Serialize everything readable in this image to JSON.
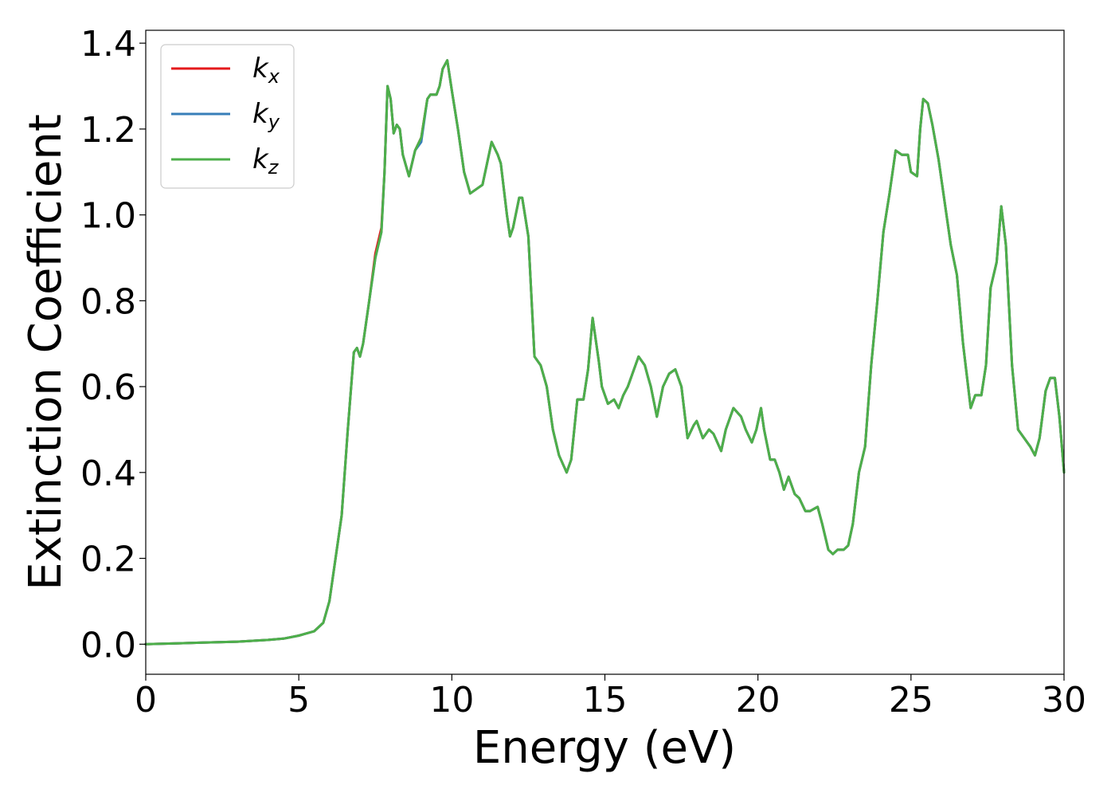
{
  "chart_data": {
    "type": "line",
    "xlabel": "Energy (eV)",
    "ylabel": "Extinction Coefficient",
    "xlim": [
      0,
      30
    ],
    "ylim": [
      -0.07,
      1.43
    ],
    "xticks": [
      0,
      5,
      10,
      15,
      20,
      25,
      30
    ],
    "xtick_labels": [
      "0",
      "5",
      "10",
      "15",
      "20",
      "25",
      "30"
    ],
    "yticks": [
      0.0,
      0.2,
      0.4,
      0.6,
      0.8,
      1.0,
      1.2,
      1.4
    ],
    "ytick_labels": [
      "0.0",
      "0.2",
      "0.4",
      "0.6",
      "0.8",
      "1.0",
      "1.2",
      "1.4"
    ],
    "grid": false,
    "legend_position": "top-left",
    "colors": {
      "kx": "#e41a1c",
      "ky": "#377eb8",
      "kz": "#4daf4a"
    },
    "x": [
      0,
      1,
      2,
      3,
      4,
      4.5,
      5,
      5.5,
      5.8,
      6.0,
      6.2,
      6.4,
      6.6,
      6.8,
      6.9,
      7.0,
      7.1,
      7.3,
      7.5,
      7.7,
      7.8,
      7.9,
      8.0,
      8.1,
      8.2,
      8.3,
      8.4,
      8.6,
      8.8,
      9.0,
      9.2,
      9.3,
      9.5,
      9.6,
      9.7,
      9.85,
      10.0,
      10.2,
      10.4,
      10.6,
      10.8,
      11.0,
      11.3,
      11.5,
      11.6,
      11.8,
      11.9,
      12.0,
      12.2,
      12.3,
      12.5,
      12.7,
      12.9,
      13.1,
      13.3,
      13.5,
      13.75,
      13.9,
      14.1,
      14.3,
      14.45,
      14.6,
      14.8,
      14.9,
      15.1,
      15.3,
      15.45,
      15.6,
      15.75,
      15.9,
      16.1,
      16.3,
      16.5,
      16.7,
      16.9,
      17.1,
      17.3,
      17.5,
      17.7,
      17.9,
      18.0,
      18.2,
      18.4,
      18.55,
      18.8,
      18.95,
      19.2,
      19.45,
      19.6,
      19.8,
      19.95,
      20.1,
      20.2,
      20.4,
      20.55,
      20.7,
      20.85,
      21.0,
      21.2,
      21.35,
      21.55,
      21.7,
      21.95,
      22.1,
      22.3,
      22.45,
      22.6,
      22.8,
      22.95,
      23.1,
      23.3,
      23.5,
      23.7,
      23.9,
      24.1,
      24.3,
      24.5,
      24.7,
      24.9,
      25.0,
      25.2,
      25.3,
      25.4,
      25.55,
      25.7,
      25.9,
      26.1,
      26.3,
      26.5,
      26.7,
      26.95,
      27.1,
      27.3,
      27.45,
      27.6,
      27.8,
      27.95,
      28.1,
      28.3,
      28.5,
      28.7,
      28.9,
      29.05,
      29.2,
      29.4,
      29.55,
      29.7,
      29.85,
      30.0
    ],
    "series": [
      {
        "name": "kx",
        "values": [
          0.0,
          0.002,
          0.004,
          0.006,
          0.01,
          0.013,
          0.02,
          0.03,
          0.05,
          0.1,
          0.2,
          0.3,
          0.5,
          0.68,
          0.69,
          0.67,
          0.7,
          0.8,
          0.91,
          0.97,
          1.1,
          1.3,
          1.27,
          1.19,
          1.21,
          1.2,
          1.14,
          1.09,
          1.15,
          1.18,
          1.27,
          1.28,
          1.28,
          1.3,
          1.34,
          1.36,
          1.29,
          1.2,
          1.1,
          1.05,
          1.06,
          1.07,
          1.17,
          1.14,
          1.12,
          1.0,
          0.95,
          0.97,
          1.04,
          1.04,
          0.95,
          0.67,
          0.65,
          0.6,
          0.5,
          0.44,
          0.4,
          0.43,
          0.57,
          0.57,
          0.64,
          0.76,
          0.66,
          0.6,
          0.56,
          0.57,
          0.55,
          0.58,
          0.6,
          0.63,
          0.67,
          0.65,
          0.6,
          0.53,
          0.6,
          0.63,
          0.64,
          0.6,
          0.48,
          0.51,
          0.52,
          0.48,
          0.5,
          0.49,
          0.45,
          0.5,
          0.55,
          0.53,
          0.5,
          0.47,
          0.5,
          0.55,
          0.5,
          0.43,
          0.43,
          0.4,
          0.36,
          0.39,
          0.35,
          0.34,
          0.31,
          0.31,
          0.32,
          0.28,
          0.22,
          0.21,
          0.22,
          0.22,
          0.23,
          0.28,
          0.4,
          0.46,
          0.65,
          0.8,
          0.96,
          1.05,
          1.15,
          1.14,
          1.14,
          1.1,
          1.09,
          1.2,
          1.27,
          1.26,
          1.21,
          1.13,
          1.03,
          0.93,
          0.86,
          0.7,
          0.55,
          0.58,
          0.58,
          0.65,
          0.83,
          0.89,
          1.02,
          0.93,
          0.65,
          0.5,
          0.48,
          0.46,
          0.44,
          0.48,
          0.59,
          0.62,
          0.62,
          0.53,
          0.4
        ]
      },
      {
        "name": "ky",
        "values": [
          0.0,
          0.002,
          0.004,
          0.006,
          0.01,
          0.013,
          0.02,
          0.03,
          0.05,
          0.1,
          0.2,
          0.3,
          0.5,
          0.68,
          0.69,
          0.67,
          0.7,
          0.8,
          0.9,
          0.96,
          1.1,
          1.3,
          1.27,
          1.19,
          1.21,
          1.2,
          1.14,
          1.09,
          1.15,
          1.17,
          1.27,
          1.28,
          1.28,
          1.3,
          1.34,
          1.36,
          1.29,
          1.2,
          1.1,
          1.05,
          1.06,
          1.07,
          1.17,
          1.14,
          1.12,
          1.0,
          0.95,
          0.97,
          1.04,
          1.04,
          0.95,
          0.67,
          0.65,
          0.6,
          0.5,
          0.44,
          0.4,
          0.43,
          0.57,
          0.57,
          0.64,
          0.76,
          0.66,
          0.6,
          0.56,
          0.57,
          0.55,
          0.58,
          0.6,
          0.63,
          0.67,
          0.65,
          0.6,
          0.53,
          0.6,
          0.63,
          0.64,
          0.6,
          0.48,
          0.51,
          0.52,
          0.48,
          0.5,
          0.49,
          0.45,
          0.5,
          0.55,
          0.53,
          0.5,
          0.47,
          0.5,
          0.55,
          0.5,
          0.43,
          0.43,
          0.4,
          0.36,
          0.39,
          0.35,
          0.34,
          0.31,
          0.31,
          0.32,
          0.28,
          0.22,
          0.21,
          0.22,
          0.22,
          0.23,
          0.28,
          0.4,
          0.46,
          0.65,
          0.8,
          0.96,
          1.05,
          1.15,
          1.14,
          1.14,
          1.1,
          1.09,
          1.2,
          1.27,
          1.26,
          1.21,
          1.13,
          1.03,
          0.93,
          0.86,
          0.7,
          0.55,
          0.58,
          0.58,
          0.65,
          0.83,
          0.89,
          1.02,
          0.93,
          0.65,
          0.5,
          0.48,
          0.46,
          0.44,
          0.48,
          0.59,
          0.62,
          0.62,
          0.53,
          0.4
        ]
      },
      {
        "name": "kz",
        "values": [
          0.0,
          0.002,
          0.004,
          0.006,
          0.01,
          0.013,
          0.02,
          0.03,
          0.05,
          0.1,
          0.2,
          0.3,
          0.5,
          0.68,
          0.69,
          0.67,
          0.7,
          0.8,
          0.9,
          0.96,
          1.1,
          1.3,
          1.27,
          1.19,
          1.21,
          1.2,
          1.14,
          1.09,
          1.15,
          1.18,
          1.27,
          1.28,
          1.28,
          1.3,
          1.34,
          1.36,
          1.29,
          1.2,
          1.1,
          1.05,
          1.06,
          1.07,
          1.17,
          1.14,
          1.12,
          1.0,
          0.95,
          0.97,
          1.04,
          1.04,
          0.95,
          0.67,
          0.65,
          0.6,
          0.5,
          0.44,
          0.4,
          0.43,
          0.57,
          0.57,
          0.64,
          0.76,
          0.66,
          0.6,
          0.56,
          0.57,
          0.55,
          0.58,
          0.6,
          0.63,
          0.67,
          0.65,
          0.6,
          0.53,
          0.6,
          0.63,
          0.64,
          0.6,
          0.48,
          0.51,
          0.52,
          0.48,
          0.5,
          0.49,
          0.45,
          0.5,
          0.55,
          0.53,
          0.5,
          0.47,
          0.5,
          0.55,
          0.5,
          0.43,
          0.43,
          0.4,
          0.36,
          0.39,
          0.35,
          0.34,
          0.31,
          0.31,
          0.32,
          0.28,
          0.22,
          0.21,
          0.22,
          0.22,
          0.23,
          0.28,
          0.4,
          0.46,
          0.65,
          0.8,
          0.96,
          1.05,
          1.15,
          1.14,
          1.14,
          1.1,
          1.09,
          1.2,
          1.27,
          1.26,
          1.21,
          1.13,
          1.03,
          0.93,
          0.86,
          0.7,
          0.55,
          0.58,
          0.58,
          0.65,
          0.83,
          0.89,
          1.02,
          0.93,
          0.65,
          0.5,
          0.48,
          0.46,
          0.44,
          0.48,
          0.59,
          0.62,
          0.62,
          0.53,
          0.4
        ]
      }
    ],
    "legend": [
      {
        "base": "k",
        "sub": "x",
        "series": "kx"
      },
      {
        "base": "k",
        "sub": "y",
        "series": "ky"
      },
      {
        "base": "k",
        "sub": "z",
        "series": "kz"
      }
    ]
  }
}
